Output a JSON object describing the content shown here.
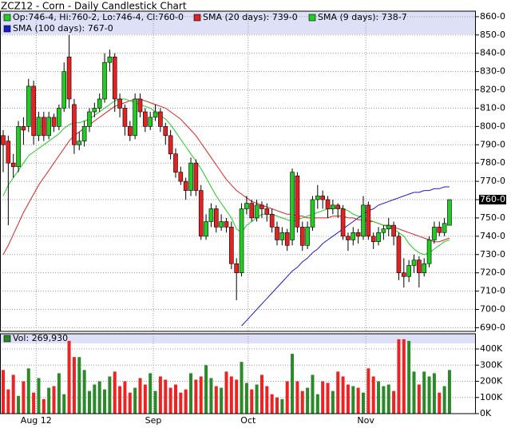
{
  "chart_data": [
    {
      "type": "candlestick",
      "title": "ZCZ12 - Corn - Daily Candlestick Chart",
      "legend_label": "Op:746-4, Hi:760-2, Lo:746-4, Cl:760-0",
      "up_color": "#22cc22",
      "down_color": "#e52222",
      "open": [
        795,
        792,
        780,
        778,
        800,
        800,
        822,
        795,
        805,
        795,
        805,
        800,
        810,
        838,
        812,
        790,
        792,
        800,
        808,
        810,
        815,
        835,
        838,
        815,
        810,
        800,
        795,
        815,
        808,
        800,
        805,
        808,
        800,
        795,
        785,
        775,
        770,
        765,
        780,
        765,
        740,
        748,
        755,
        745,
        748,
        745,
        725,
        720,
        755,
        758,
        750,
        757,
        755,
        752,
        745,
        738,
        742,
        738,
        773,
        745,
        735,
        745,
        760,
        762,
        760,
        755,
        757,
        755,
        740,
        738,
        742,
        740,
        757,
        740,
        737,
        742,
        744,
        746,
        740,
        720,
        718,
        724,
        727,
        720,
        725,
        738,
        745,
        742,
        746
      ],
      "high": [
        798,
        795,
        785,
        803,
        805,
        826,
        825,
        808,
        808,
        808,
        807,
        812,
        835,
        850,
        815,
        797,
        803,
        810,
        813,
        818,
        840,
        842,
        840,
        818,
        812,
        803,
        818,
        818,
        810,
        808,
        812,
        810,
        802,
        798,
        788,
        778,
        772,
        783,
        782,
        768,
        752,
        758,
        757,
        752,
        750,
        748,
        728,
        758,
        762,
        760,
        760,
        759,
        758,
        755,
        748,
        745,
        744,
        777,
        775,
        748,
        748,
        762,
        768,
        765,
        762,
        760,
        758,
        757,
        742,
        745,
        744,
        762,
        759,
        742,
        745,
        746,
        750,
        748,
        742,
        728,
        727,
        730,
        729,
        728,
        740,
        748,
        748,
        750,
        760
      ],
      "low": [
        775,
        746,
        772,
        775,
        790,
        797,
        790,
        792,
        792,
        793,
        797,
        798,
        808,
        810,
        785,
        787,
        789,
        797,
        805,
        808,
        813,
        830,
        808,
        805,
        795,
        792,
        793,
        805,
        797,
        798,
        803,
        797,
        790,
        782,
        772,
        768,
        760,
        762,
        762,
        738,
        738,
        745,
        742,
        743,
        742,
        722,
        705,
        718,
        752,
        748,
        748,
        750,
        748,
        742,
        735,
        735,
        732,
        735,
        742,
        732,
        733,
        743,
        755,
        755,
        750,
        752,
        750,
        738,
        732,
        735,
        736,
        738,
        738,
        733,
        735,
        738,
        740,
        735,
        716,
        712,
        715,
        720,
        712,
        718,
        723,
        736,
        740,
        740,
        746
      ],
      "close": [
        790,
        780,
        778,
        800,
        798,
        822,
        795,
        805,
        795,
        805,
        800,
        810,
        830,
        815,
        790,
        792,
        800,
        808,
        810,
        815,
        835,
        838,
        815,
        810,
        800,
        795,
        815,
        808,
        800,
        805,
        808,
        800,
        795,
        785,
        775,
        770,
        765,
        780,
        765,
        740,
        748,
        755,
        745,
        748,
        745,
        725,
        720,
        755,
        758,
        750,
        757,
        755,
        752,
        745,
        738,
        742,
        735,
        775,
        745,
        735,
        745,
        760,
        762,
        760,
        755,
        757,
        755,
        740,
        738,
        742,
        740,
        757,
        740,
        737,
        742,
        744,
        746,
        740,
        720,
        718,
        724,
        727,
        720,
        725,
        738,
        745,
        742,
        747,
        760
      ],
      "series": [
        {
          "name": "SMA (20 days): 739-0",
          "color": "#dd2222",
          "values": [
            730,
            735,
            741,
            747,
            753,
            758,
            763,
            768,
            772,
            776,
            780,
            784,
            788,
            792,
            795,
            797,
            799,
            801,
            803,
            805,
            807,
            809,
            811,
            812,
            813,
            814,
            815,
            815,
            814,
            813,
            812,
            811,
            810,
            808,
            806,
            804,
            801,
            798,
            795,
            791,
            787,
            783,
            779,
            775,
            771,
            768,
            765,
            763,
            761,
            759,
            758,
            757,
            756,
            755,
            754,
            753,
            752,
            752,
            751,
            751,
            750,
            750,
            750,
            750,
            750,
            751,
            751,
            751,
            750,
            750,
            749,
            749,
            748,
            748,
            747,
            746,
            746,
            745,
            744,
            743,
            742,
            741,
            740,
            739,
            738,
            737,
            737,
            738,
            739
          ]
        },
        {
          "name": "SMA (9 days): 738-7",
          "color": "#22cc22",
          "values": [
            762,
            768,
            772,
            776,
            780,
            784,
            786,
            788,
            790,
            792,
            794,
            796,
            799,
            801,
            802,
            802,
            803,
            804,
            806,
            808,
            810,
            812,
            814,
            815,
            815,
            814,
            813,
            812,
            811,
            810,
            808,
            806,
            804,
            801,
            797,
            793,
            789,
            785,
            781,
            777,
            772,
            767,
            762,
            758,
            754,
            750,
            744,
            742,
            746,
            748,
            750,
            752,
            752,
            752,
            751,
            750,
            749,
            748,
            749,
            750,
            751,
            752,
            753,
            754,
            755,
            755,
            756,
            755,
            754,
            752,
            751,
            750,
            749,
            748,
            747,
            746,
            745,
            744,
            742,
            740,
            736,
            733,
            731,
            730,
            731,
            733,
            735,
            737,
            738
          ]
        },
        {
          "name": "SMA (100 days): 767-0",
          "color": "#1a1acc",
          "values": [
            null,
            null,
            null,
            null,
            null,
            null,
            null,
            null,
            null,
            null,
            null,
            null,
            null,
            null,
            null,
            null,
            null,
            null,
            null,
            null,
            null,
            null,
            null,
            null,
            null,
            null,
            null,
            null,
            null,
            null,
            null,
            null,
            null,
            null,
            null,
            null,
            null,
            null,
            null,
            null,
            null,
            null,
            null,
            null,
            null,
            null,
            null,
            691,
            694,
            697,
            700,
            703,
            706,
            709,
            712,
            715,
            718,
            721,
            723,
            726,
            728,
            731,
            733,
            736,
            738,
            740,
            742,
            744,
            746,
            748,
            750,
            752,
            754,
            755,
            757,
            758,
            759,
            760,
            761,
            762,
            763,
            764,
            764,
            765,
            765,
            766,
            766,
            767,
            767
          ]
        }
      ],
      "xlim": [
        -0.63,
        93.2
      ],
      "xticks": [
        {
          "value": 6.5,
          "label": "Aug 12"
        },
        {
          "value": 29.6,
          "label": "Sep"
        },
        {
          "value": 48.3,
          "label": "Oct"
        },
        {
          "value": 71.5,
          "label": "Nov"
        }
      ],
      "ylim": [
        688,
        863
      ],
      "yticks": [
        {
          "value": 690,
          "label": "690-0"
        },
        {
          "value": 700,
          "label": "700-0"
        },
        {
          "value": 710,
          "label": "710-0"
        },
        {
          "value": 720,
          "label": "720-0"
        },
        {
          "value": 730,
          "label": "730-0"
        },
        {
          "value": 740,
          "label": "740-0"
        },
        {
          "value": 750,
          "label": "750-0"
        },
        {
          "value": 760,
          "label": "760-0"
        },
        {
          "value": 770,
          "label": "770-0"
        },
        {
          "value": 780,
          "label": "780-0"
        },
        {
          "value": 790,
          "label": "790-0"
        },
        {
          "value": 800,
          "label": "800-0"
        },
        {
          "value": 810,
          "label": "810-0"
        },
        {
          "value": 820,
          "label": "820-0"
        },
        {
          "value": 830,
          "label": "830-0"
        },
        {
          "value": 840,
          "label": "840-0"
        },
        {
          "value": 850,
          "label": "850-0"
        },
        {
          "value": 860,
          "label": "860-0"
        }
      ],
      "grid": true
    },
    {
      "type": "bar",
      "up_color": "#2a8a2a",
      "down_color": "#ee2222",
      "series": [
        {
          "name": "Vol: 269,930",
          "color": "#2a8a2a",
          "values": [
            270000,
            150000,
            240000,
            110000,
            200000,
            280000,
            130000,
            220000,
            90000,
            160000,
            170000,
            250000,
            120000,
            450000,
            350000,
            350000,
            270000,
            140000,
            180000,
            200000,
            150000,
            230000,
            260000,
            170000,
            200000,
            130000,
            160000,
            220000,
            180000,
            250000,
            140000,
            230000,
            210000,
            160000,
            180000,
            130000,
            150000,
            250000,
            210000,
            230000,
            300000,
            220000,
            170000,
            160000,
            260000,
            230000,
            210000,
            320000,
            190000,
            150000,
            180000,
            240000,
            170000,
            120000,
            100000,
            90000,
            200000,
            370000,
            200000,
            140000,
            160000,
            240000,
            120000,
            200000,
            190000,
            140000,
            260000,
            230000,
            180000,
            170000,
            160000,
            130000,
            280000,
            230000,
            200000,
            170000,
            180000,
            140000,
            460000,
            460000,
            450000,
            260000,
            180000,
            260000,
            230000,
            250000,
            130000,
            170000,
            269930
          ]
        }
      ],
      "ylim": [
        0,
        494000
      ],
      "yticks": [
        {
          "value": 0,
          "label": "0K"
        },
        {
          "value": 100000,
          "label": "100K"
        },
        {
          "value": 200000,
          "label": "200K"
        },
        {
          "value": 300000,
          "label": "300K"
        },
        {
          "value": 400000,
          "label": "400K"
        }
      ],
      "grid": true
    }
  ]
}
